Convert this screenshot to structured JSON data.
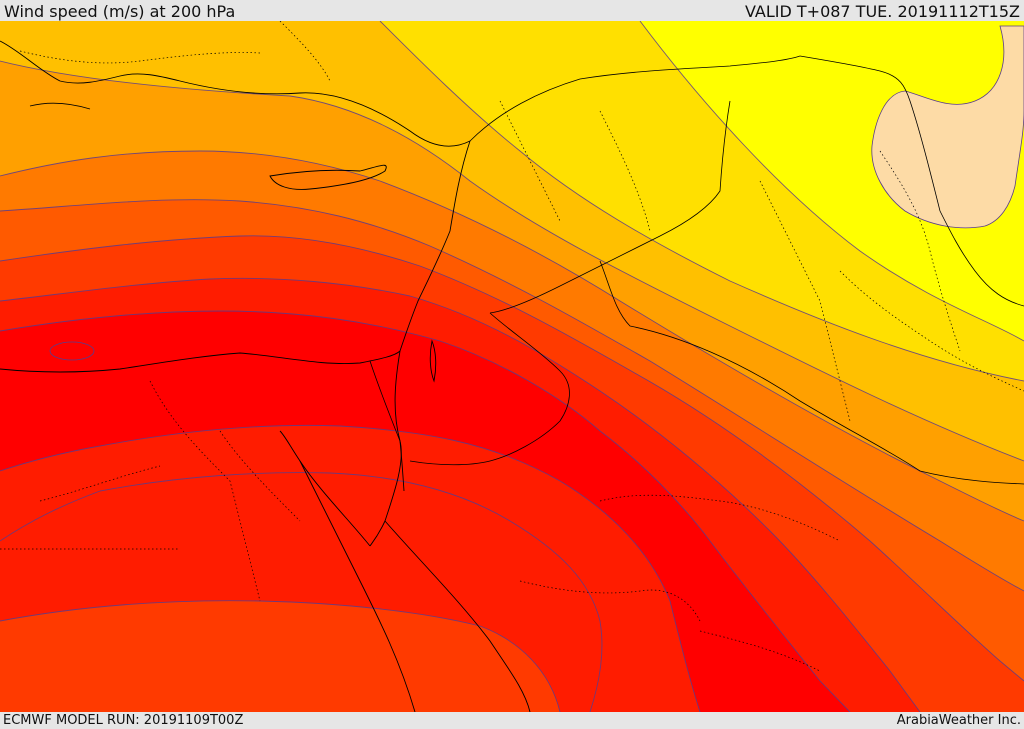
{
  "header": {
    "title": "Wind speed (m/s) at 200 hPa",
    "valid": "VALID T+087 TUE. 20191112T15Z"
  },
  "footer": {
    "model_run": "ECMWF MODEL RUN: 20191109T00Z",
    "credit": "ArabiaWeather Inc."
  },
  "map": {
    "variable": "wind speed",
    "level": "200 hPa",
    "units": "m/s",
    "region": "Eastern Mediterranean, Egypt, Levant, northern Arabia",
    "colors": {
      "band_1": "#ffff00",
      "band_2": "#ffe000",
      "band_3": "#ffc000",
      "band_4": "#ffa000",
      "band_5": "#ff7a00",
      "band_6": "#ff5a00",
      "band_7": "#ff3a00",
      "band_8": "#ff1c00",
      "band_9": "#ff0000",
      "low_region": "#fddba6",
      "contour_line": "#5a3c8c",
      "coastline": "#000000"
    }
  }
}
